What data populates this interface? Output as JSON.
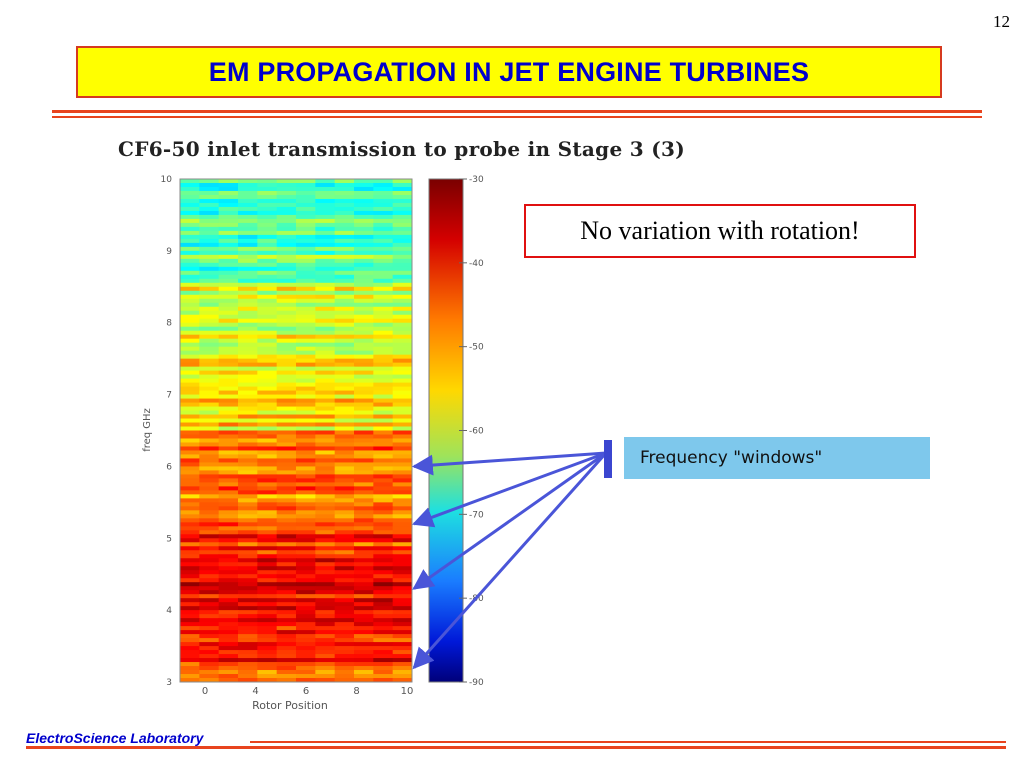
{
  "slide": {
    "page_number": "12",
    "title": "EM PROPAGATION IN JET ENGINE TURBINES",
    "note": "No variation with rotation!",
    "callout": "Frequency \"windows\"",
    "footer": "ElectroScience Laboratory"
  },
  "colors": {
    "title_bg": "#ffff00",
    "title_text": "#0000cc",
    "accent_rule": "#e8441e",
    "note_border": "#e01010",
    "callout_bg": "#7ec8ec",
    "arrow": "#4a55d8"
  },
  "chart_data": {
    "type": "heatmap",
    "title": "CF6-50 inlet transmission to probe in Stage 3 (3)",
    "xlabel": "Rotor Position",
    "ylabel": "freq GHz",
    "x_ticks": [
      "0",
      "4",
      "6",
      "8",
      "10"
    ],
    "y_ticks": [
      "3",
      "4",
      "5",
      "6",
      "7",
      "8",
      "9",
      "10"
    ],
    "ylim": [
      3,
      10
    ],
    "colorbar": {
      "ticks": [
        "-30",
        "-40",
        "-50",
        "-60",
        "-70",
        "-80",
        "-90"
      ],
      "range": [
        -90,
        -30
      ],
      "colormap": "jet"
    },
    "band_levels_dB": [
      {
        "freq_range": [
          3.0,
          3.2
        ],
        "level": -42
      },
      {
        "freq_range": [
          3.2,
          4.5
        ],
        "level": -38
      },
      {
        "freq_range": [
          4.5,
          5.2
        ],
        "level": -40
      },
      {
        "freq_range": [
          5.2,
          6.5
        ],
        "level": -45
      },
      {
        "freq_range": [
          6.5,
          7.5
        ],
        "level": -50
      },
      {
        "freq_range": [
          7.5,
          8.5
        ],
        "level": -54
      },
      {
        "freq_range": [
          8.5,
          10.0
        ],
        "level": -62
      }
    ],
    "frequency_windows_GHz": [
      6.0,
      5.2,
      4.3,
      3.2
    ],
    "grid": false
  }
}
